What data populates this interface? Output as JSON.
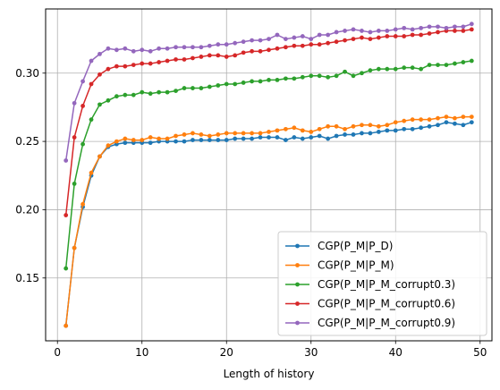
{
  "chart_data": {
    "type": "line",
    "xlabel": "Length of history",
    "ylabel": "",
    "title": "",
    "xlim": [
      -1.4,
      51.4
    ],
    "ylim": [
      0.104,
      0.347
    ],
    "xticks": [
      0,
      10,
      20,
      30,
      40,
      50
    ],
    "yticks": [
      0.15,
      0.2,
      0.25,
      0.3
    ],
    "xtick_labels": [
      "0",
      "10",
      "20",
      "30",
      "40",
      "50"
    ],
    "ytick_labels": [
      "0.15",
      "0.20",
      "0.25",
      "0.30"
    ],
    "grid": true,
    "legend_position": "lower-right",
    "x": [
      1,
      2,
      3,
      4,
      5,
      6,
      7,
      8,
      9,
      10,
      11,
      12,
      13,
      14,
      15,
      16,
      17,
      18,
      19,
      20,
      21,
      22,
      23,
      24,
      25,
      26,
      27,
      28,
      29,
      30,
      31,
      32,
      33,
      34,
      35,
      36,
      37,
      38,
      39,
      40,
      41,
      42,
      43,
      44,
      45,
      46,
      47,
      48,
      49
    ],
    "series": [
      {
        "name": "CGP(P_M|P_D)",
        "color": "#1f77b4",
        "values": [
          0.115,
          0.172,
          0.202,
          0.225,
          0.239,
          0.246,
          0.248,
          0.249,
          0.249,
          0.249,
          0.249,
          0.25,
          0.25,
          0.25,
          0.25,
          0.251,
          0.251,
          0.251,
          0.251,
          0.251,
          0.252,
          0.252,
          0.252,
          0.253,
          0.253,
          0.253,
          0.251,
          0.253,
          0.252,
          0.253,
          0.254,
          0.252,
          0.254,
          0.255,
          0.255,
          0.256,
          0.256,
          0.257,
          0.258,
          0.258,
          0.259,
          0.259,
          0.26,
          0.261,
          0.262,
          0.264,
          0.263,
          0.262,
          0.264
        ]
      },
      {
        "name": "CGP(P_M|P_M)",
        "color": "#ff7f0e",
        "values": [
          0.115,
          0.172,
          0.204,
          0.227,
          0.239,
          0.247,
          0.25,
          0.252,
          0.251,
          0.251,
          0.253,
          0.252,
          0.252,
          0.254,
          0.255,
          0.256,
          0.255,
          0.254,
          0.255,
          0.256,
          0.256,
          0.256,
          0.256,
          0.256,
          0.257,
          0.258,
          0.259,
          0.26,
          0.258,
          0.257,
          0.259,
          0.261,
          0.261,
          0.259,
          0.261,
          0.262,
          0.262,
          0.261,
          0.262,
          0.264,
          0.265,
          0.266,
          0.266,
          0.266,
          0.267,
          0.268,
          0.267,
          0.268,
          0.268
        ]
      },
      {
        "name": "CGP(P_M|P_M_corrupt0.3)",
        "color": "#2ca02c",
        "values": [
          0.157,
          0.219,
          0.248,
          0.266,
          0.277,
          0.28,
          0.283,
          0.284,
          0.284,
          0.286,
          0.285,
          0.286,
          0.286,
          0.287,
          0.289,
          0.289,
          0.289,
          0.29,
          0.291,
          0.292,
          0.292,
          0.293,
          0.294,
          0.294,
          0.295,
          0.295,
          0.296,
          0.296,
          0.297,
          0.298,
          0.298,
          0.297,
          0.298,
          0.301,
          0.298,
          0.3,
          0.302,
          0.303,
          0.303,
          0.303,
          0.304,
          0.304,
          0.303,
          0.306,
          0.306,
          0.306,
          0.307,
          0.308,
          0.309
        ]
      },
      {
        "name": "CGP(P_M|P_M_corrupt0.6)",
        "color": "#d62728",
        "values": [
          0.196,
          0.253,
          0.276,
          0.292,
          0.299,
          0.303,
          0.305,
          0.305,
          0.306,
          0.307,
          0.307,
          0.308,
          0.309,
          0.31,
          0.31,
          0.311,
          0.312,
          0.313,
          0.313,
          0.312,
          0.313,
          0.315,
          0.316,
          0.316,
          0.317,
          0.318,
          0.319,
          0.32,
          0.32,
          0.321,
          0.321,
          0.322,
          0.323,
          0.324,
          0.325,
          0.326,
          0.325,
          0.326,
          0.327,
          0.327,
          0.327,
          0.328,
          0.328,
          0.329,
          0.33,
          0.331,
          0.331,
          0.331,
          0.332
        ]
      },
      {
        "name": "CGP(P_M|P_M_corrupt0.9)",
        "color": "#9467bd",
        "values": [
          0.236,
          0.278,
          0.294,
          0.309,
          0.314,
          0.318,
          0.317,
          0.318,
          0.316,
          0.317,
          0.316,
          0.318,
          0.318,
          0.319,
          0.319,
          0.319,
          0.319,
          0.32,
          0.321,
          0.321,
          0.322,
          0.323,
          0.324,
          0.324,
          0.325,
          0.328,
          0.325,
          0.326,
          0.327,
          0.325,
          0.328,
          0.328,
          0.33,
          0.331,
          0.332,
          0.331,
          0.33,
          0.331,
          0.331,
          0.332,
          0.333,
          0.332,
          0.333,
          0.334,
          0.334,
          0.333,
          0.334,
          0.334,
          0.336
        ]
      }
    ]
  }
}
